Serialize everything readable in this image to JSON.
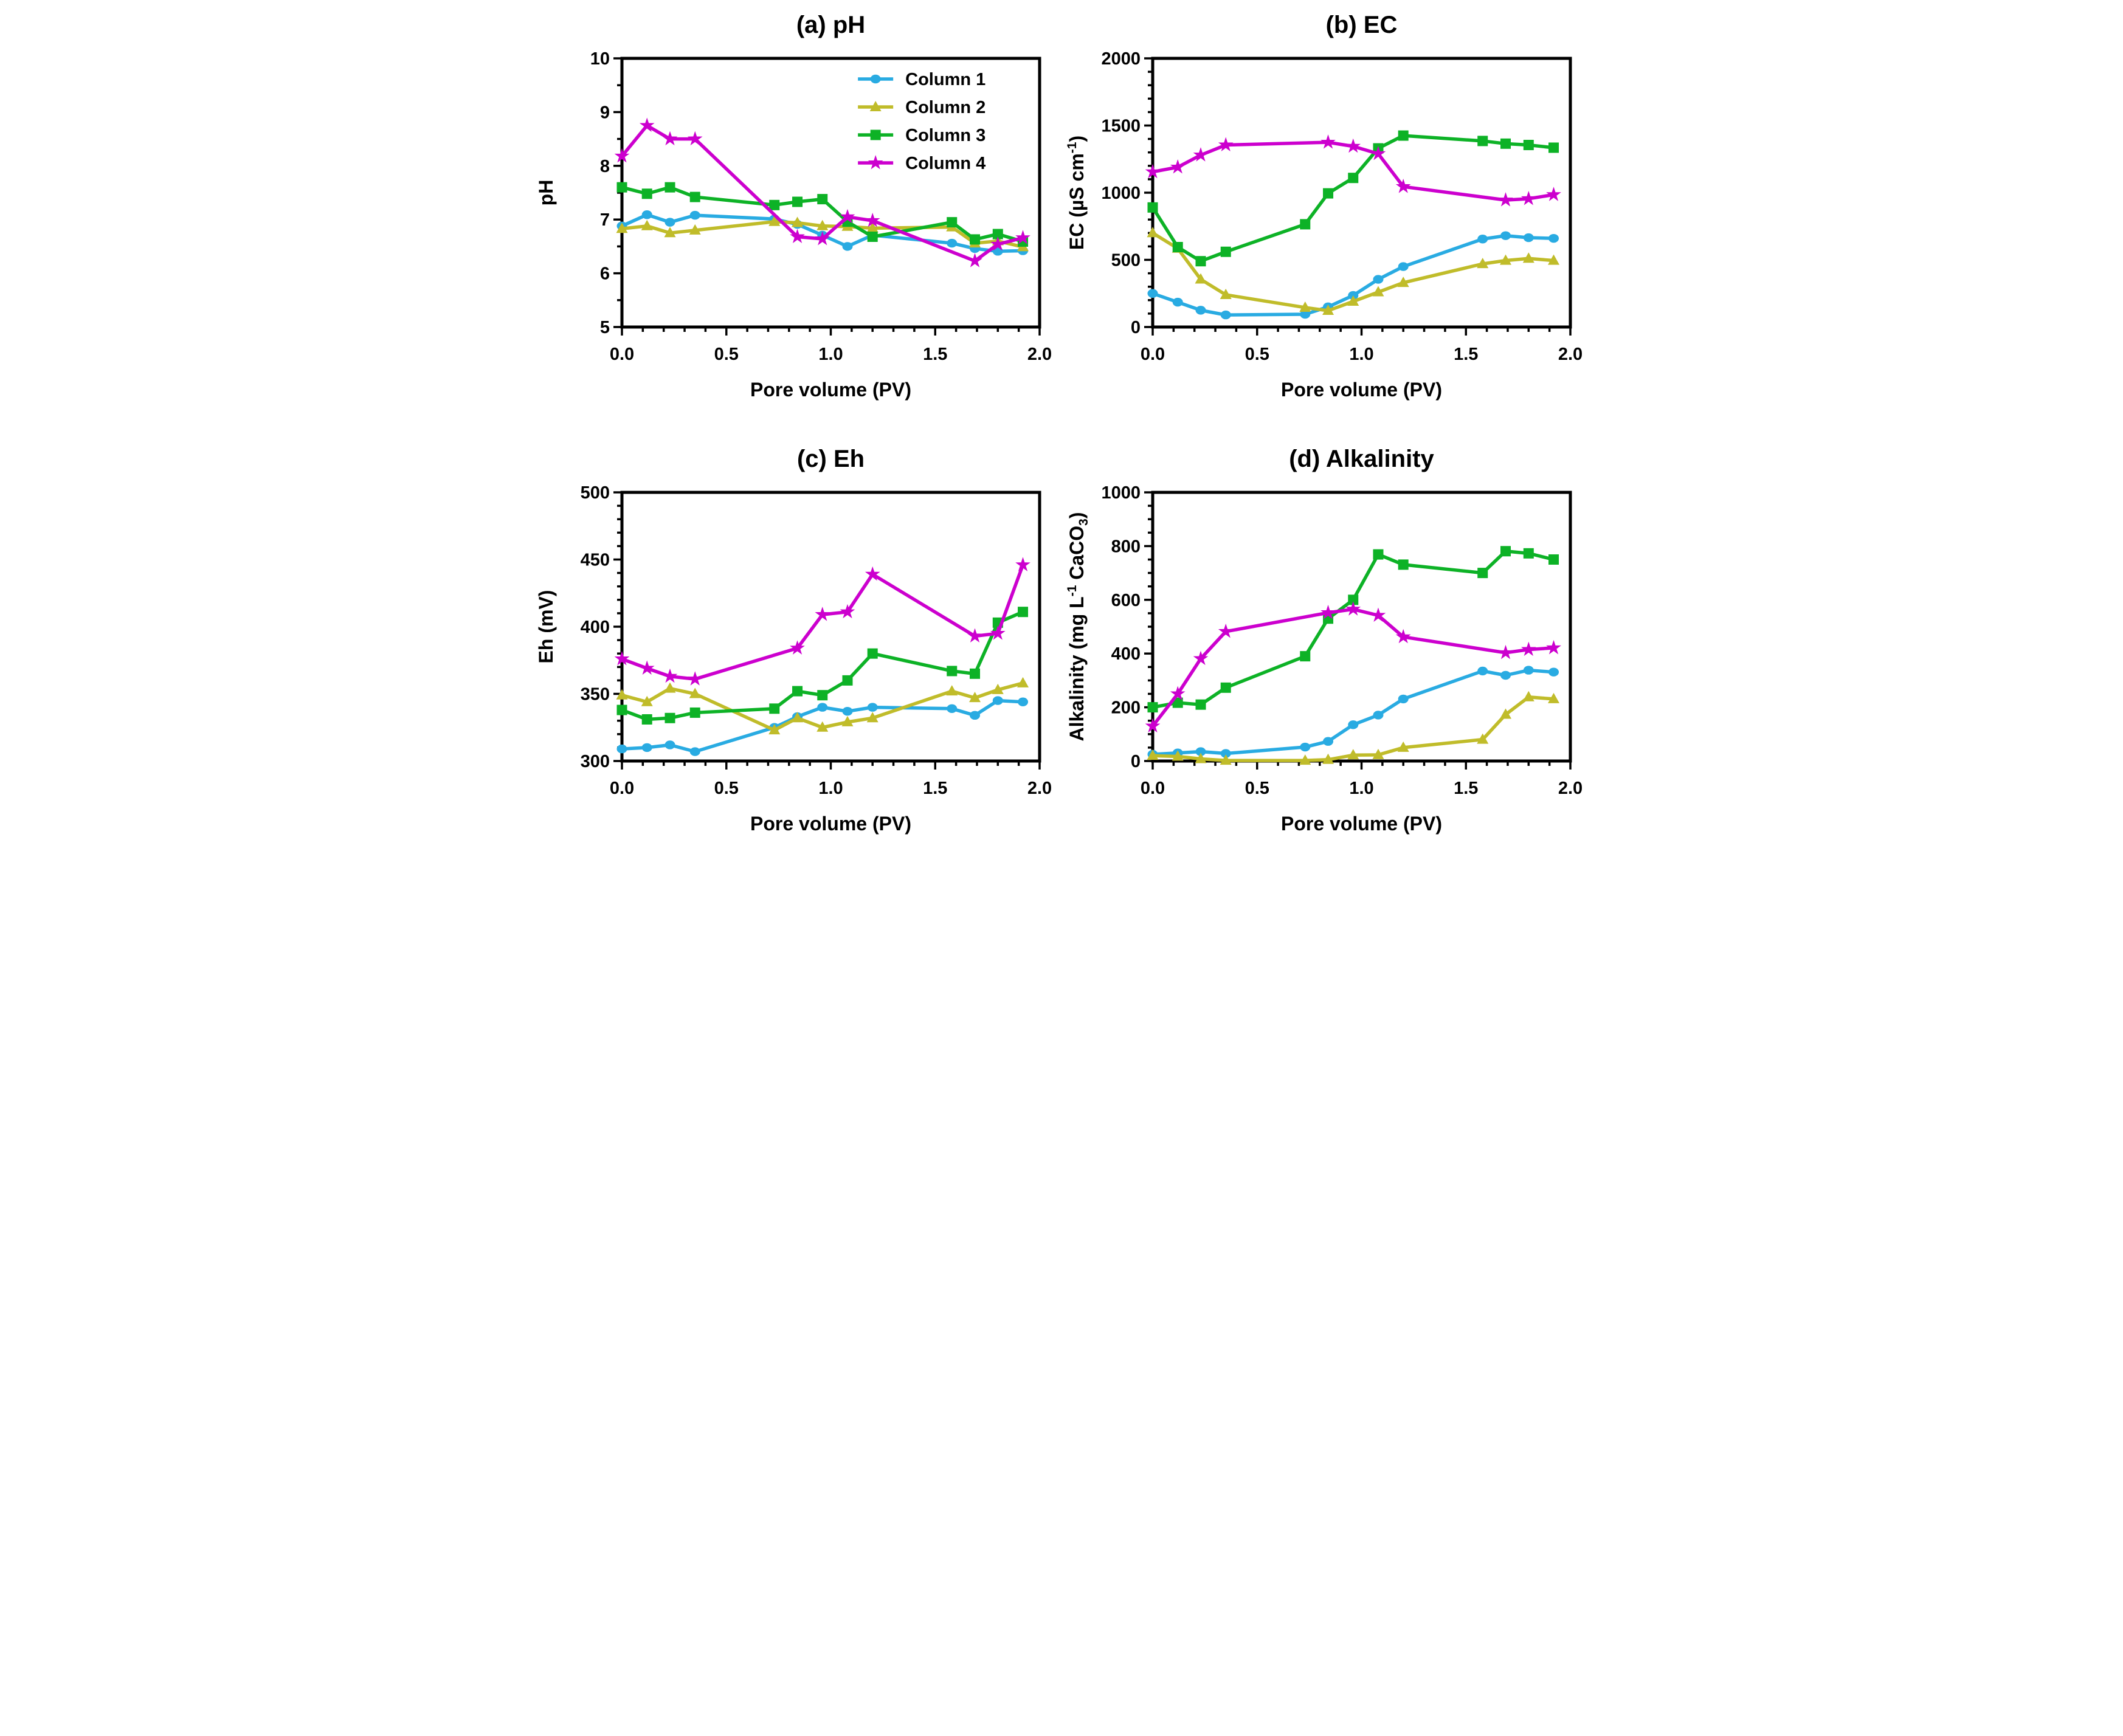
{
  "figure": {
    "background": "#ffffff",
    "axis_color": "#000000"
  },
  "legend": {
    "position": "top-right-inside-panel-a",
    "entries": [
      {
        "label": "Column 1",
        "color": "#29ABE2",
        "marker": "circle"
      },
      {
        "label": "Column 2",
        "color": "#C0BC2A",
        "marker": "triangle"
      },
      {
        "label": "Column 3",
        "color": "#0DB226",
        "marker": "square"
      },
      {
        "label": "Column 4",
        "color": "#CC00CE",
        "marker": "star"
      }
    ]
  },
  "chart_data": [
    {
      "id": "a",
      "type": "line",
      "title": "(a) pH",
      "xlabel": "Pore volume (PV)",
      "ylabel": [
        {
          "t": "pH"
        }
      ],
      "xlim": [
        0,
        2
      ],
      "xmajor": 0.5,
      "xminor": 0.1,
      "ylim": [
        5,
        10
      ],
      "ymajor": 1,
      "yminor": 0.5,
      "xticks": [
        "0.0",
        "0.5",
        "1.0",
        "1.5",
        "2.0"
      ],
      "yticks": [
        "5",
        "6",
        "7",
        "8",
        "9",
        "10"
      ],
      "grid": false,
      "legend": true,
      "series": [
        {
          "name": "Column 1",
          "color": "#29ABE2",
          "marker": "circle",
          "x": [
            0,
            0.12,
            0.23,
            0.35,
            0.73,
            0.84,
            0.96,
            1.08,
            1.2,
            1.58,
            1.69,
            1.8,
            1.92
          ],
          "y": [
            6.88,
            7.09,
            6.95,
            7.08,
            7.01,
            6.91,
            6.71,
            6.5,
            6.71,
            6.56,
            6.46,
            6.41,
            6.42
          ]
        },
        {
          "name": "Column 2",
          "color": "#C0BC2A",
          "marker": "triangle",
          "x": [
            0,
            0.12,
            0.23,
            0.35,
            0.73,
            0.84,
            0.96,
            1.08,
            1.2,
            1.58,
            1.69,
            1.8,
            1.92
          ],
          "y": [
            6.83,
            6.88,
            6.75,
            6.8,
            6.96,
            6.94,
            6.88,
            6.87,
            6.84,
            6.86,
            6.56,
            6.6,
            6.49
          ]
        },
        {
          "name": "Column 3",
          "color": "#0DB226",
          "marker": "square",
          "x": [
            0,
            0.12,
            0.23,
            0.35,
            0.73,
            0.84,
            0.96,
            1.08,
            1.2,
            1.58,
            1.69,
            1.8,
            1.92
          ],
          "y": [
            7.6,
            7.48,
            7.6,
            7.42,
            7.27,
            7.33,
            7.38,
            6.96,
            6.68,
            6.95,
            6.63,
            6.73,
            6.59
          ]
        },
        {
          "name": "Column 4",
          "color": "#CC00CE",
          "marker": "star",
          "x": [
            0,
            0.12,
            0.23,
            0.35,
            0.84,
            0.96,
            1.08,
            1.2,
            1.69,
            1.8,
            1.92
          ],
          "y": [
            8.18,
            8.75,
            8.5,
            8.5,
            6.68,
            6.64,
            7.05,
            6.98,
            6.23,
            6.54,
            6.66
          ]
        }
      ]
    },
    {
      "id": "b",
      "type": "line",
      "title": "(b) EC",
      "xlabel": "Pore volume (PV)",
      "ylabel": [
        {
          "t": "EC (µS cm"
        },
        {
          "t": "-1",
          "style": "sup"
        },
        {
          "t": ")"
        }
      ],
      "xlim": [
        0,
        2
      ],
      "xmajor": 0.5,
      "xminor": 0.1,
      "ylim": [
        0,
        2000
      ],
      "ymajor": 500,
      "yminor": 100,
      "xticks": [
        "0.0",
        "0.5",
        "1.0",
        "1.5",
        "2.0"
      ],
      "yticks": [
        "0",
        "500",
        "1000",
        "1500",
        "2000"
      ],
      "grid": false,
      "legend": false,
      "series": [
        {
          "name": "Column 1",
          "color": "#29ABE2",
          "marker": "circle",
          "x": [
            0,
            0.12,
            0.23,
            0.35,
            0.73,
            0.84,
            0.96,
            1.08,
            1.2,
            1.58,
            1.69,
            1.8,
            1.92
          ],
          "y": [
            250,
            185,
            125,
            90,
            95,
            150,
            235,
            355,
            450,
            655,
            680,
            665,
            660
          ]
        },
        {
          "name": "Column 2",
          "color": "#C0BC2A",
          "marker": "triangle",
          "x": [
            0,
            0.12,
            0.23,
            0.35,
            0.73,
            0.84,
            0.96,
            1.08,
            1.2,
            1.58,
            1.69,
            1.8,
            1.92
          ],
          "y": [
            700,
            585,
            355,
            240,
            145,
            122,
            190,
            260,
            330,
            470,
            495,
            510,
            495
          ]
        },
        {
          "name": "Column 3",
          "color": "#0DB226",
          "marker": "square",
          "x": [
            0,
            0.12,
            0.23,
            0.35,
            0.73,
            0.84,
            0.96,
            1.08,
            1.2,
            1.58,
            1.69,
            1.8,
            1.92
          ],
          "y": [
            890,
            595,
            490,
            560,
            765,
            995,
            1110,
            1330,
            1425,
            1385,
            1365,
            1355,
            1335
          ]
        },
        {
          "name": "Column 4",
          "color": "#CC00CE",
          "marker": "star",
          "x": [
            0,
            0.12,
            0.23,
            0.35,
            0.84,
            0.96,
            1.08,
            1.2,
            1.69,
            1.8,
            1.92
          ],
          "y": [
            1155,
            1190,
            1280,
            1355,
            1375,
            1345,
            1290,
            1045,
            945,
            955,
            985
          ]
        }
      ]
    },
    {
      "id": "c",
      "type": "line",
      "title": "(c) Eh",
      "xlabel": "Pore volume (PV)",
      "ylabel": [
        {
          "t": "Eh (mV)"
        }
      ],
      "xlim": [
        0,
        2
      ],
      "xmajor": 0.5,
      "xminor": 0.1,
      "ylim": [
        300,
        500
      ],
      "ymajor": 50,
      "yminor": 10,
      "xticks": [
        "0.0",
        "0.5",
        "1.0",
        "1.5",
        "2.0"
      ],
      "yticks": [
        "300",
        "350",
        "400",
        "450",
        "500"
      ],
      "grid": false,
      "legend": false,
      "series": [
        {
          "name": "Column 1",
          "color": "#29ABE2",
          "marker": "circle",
          "x": [
            0,
            0.12,
            0.23,
            0.35,
            0.73,
            0.84,
            0.96,
            1.08,
            1.2,
            1.58,
            1.69,
            1.8,
            1.92
          ],
          "y": [
            309,
            310,
            312,
            307,
            325,
            333,
            340,
            337,
            340,
            339,
            334,
            345,
            344
          ]
        },
        {
          "name": "Column 2",
          "color": "#C0BC2A",
          "marker": "triangle",
          "x": [
            0,
            0.12,
            0.23,
            0.35,
            0.73,
            0.84,
            0.96,
            1.08,
            1.2,
            1.58,
            1.69,
            1.8,
            1.92
          ],
          "y": [
            349,
            344,
            354,
            350,
            323,
            332,
            325,
            329,
            332,
            352,
            347,
            353,
            358
          ]
        },
        {
          "name": "Column 3",
          "color": "#0DB226",
          "marker": "square",
          "x": [
            0,
            0.12,
            0.23,
            0.35,
            0.73,
            0.84,
            0.96,
            1.08,
            1.2,
            1.58,
            1.69,
            1.8,
            1.92
          ],
          "y": [
            338,
            331,
            332,
            336,
            339,
            352,
            349,
            360,
            380,
            367,
            365,
            403,
            411
          ]
        },
        {
          "name": "Column 4",
          "color": "#CC00CE",
          "marker": "star",
          "x": [
            0,
            0.12,
            0.23,
            0.35,
            0.84,
            0.96,
            1.08,
            1.2,
            1.69,
            1.8,
            1.92
          ],
          "y": [
            376,
            369,
            363,
            361,
            384,
            409,
            411,
            439,
            393,
            395,
            446
          ]
        }
      ]
    },
    {
      "id": "d",
      "type": "line",
      "title": "(d) Alkalinity",
      "xlabel": "Pore volume (PV)",
      "ylabel": [
        {
          "t": "Alkalinity (mg L"
        },
        {
          "t": "-1",
          "style": "sup"
        },
        {
          "t": " CaCO"
        },
        {
          "t": "3",
          "style": "sub"
        },
        {
          "t": ")"
        }
      ],
      "xlim": [
        0,
        2
      ],
      "xmajor": 0.5,
      "xminor": 0.1,
      "ylim": [
        0,
        1000
      ],
      "ymajor": 200,
      "yminor": 50,
      "xticks": [
        "0.0",
        "0.5",
        "1.0",
        "1.5",
        "2.0"
      ],
      "yticks": [
        "0",
        "200",
        "400",
        "600",
        "800",
        "1000"
      ],
      "grid": false,
      "legend": false,
      "series": [
        {
          "name": "Column 1",
          "color": "#29ABE2",
          "marker": "circle",
          "x": [
            0,
            0.12,
            0.23,
            0.35,
            0.73,
            0.84,
            0.96,
            1.08,
            1.2,
            1.58,
            1.69,
            1.8,
            1.92
          ],
          "y": [
            25,
            30,
            35,
            28,
            52,
            73,
            135,
            171,
            231,
            335,
            319,
            338,
            331
          ]
        },
        {
          "name": "Column 2",
          "color": "#C0BC2A",
          "marker": "triangle",
          "x": [
            0,
            0.12,
            0.23,
            0.35,
            0.73,
            0.84,
            0.96,
            1.08,
            1.2,
            1.58,
            1.69,
            1.8,
            1.92
          ],
          "y": [
            20,
            17,
            8,
            2,
            2,
            5,
            22,
            23,
            50,
            80,
            173,
            238,
            231
          ]
        },
        {
          "name": "Column 3",
          "color": "#0DB226",
          "marker": "square",
          "x": [
            0,
            0.12,
            0.23,
            0.35,
            0.73,
            0.84,
            0.96,
            1.08,
            1.2,
            1.58,
            1.69,
            1.8,
            1.92
          ],
          "y": [
            200,
            217,
            210,
            273,
            390,
            530,
            600,
            769,
            731,
            700,
            781,
            773,
            750
          ]
        },
        {
          "name": "Column 4",
          "color": "#CC00CE",
          "marker": "star",
          "x": [
            0,
            0.12,
            0.23,
            0.35,
            0.84,
            0.96,
            1.08,
            1.2,
            1.69,
            1.8,
            1.92
          ],
          "y": [
            130,
            250,
            381,
            482,
            552,
            565,
            542,
            462,
            403,
            415,
            421
          ]
        }
      ]
    }
  ]
}
